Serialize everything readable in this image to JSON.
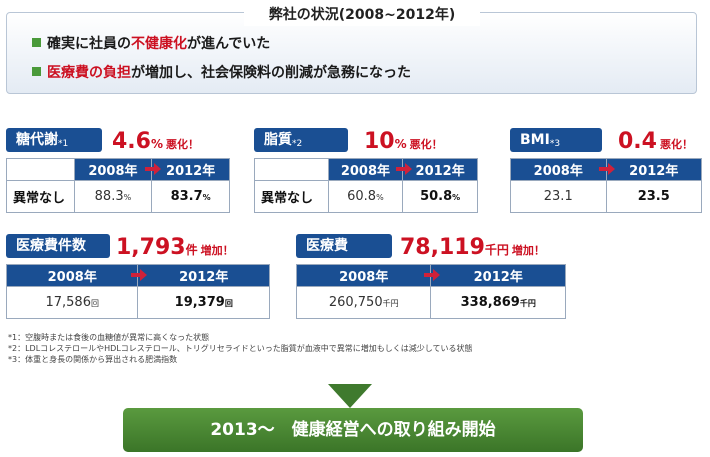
{
  "situation": {
    "title": "弊社の状況(2008~2012年)",
    "line1": {
      "before": "確実に社員の",
      "highlight": "不健康化",
      "after": "が進んでいた"
    },
    "line2": {
      "highlight": "医療費の負担",
      "after": "が増加し、社会保険料の削減が急務になった"
    }
  },
  "metrics": {
    "metabolism": {
      "label": "糖代謝",
      "mark": "*1",
      "change": "4.6",
      "unit": "%",
      "note": "悪化！",
      "year_from": "2008年",
      "year_to": "2012年",
      "row_label": "異常なし",
      "val_from": "88.3",
      "val_from_unit": "%",
      "val_to": "83.7",
      "val_to_unit": "%"
    },
    "lipid": {
      "label": "脂質",
      "mark": "*2",
      "change": "10",
      "unit": "%",
      "note": "悪化！",
      "year_from": "2008年",
      "year_to": "2012年",
      "row_label": "異常なし",
      "val_from": "60.8",
      "val_from_unit": "%",
      "val_to": "50.8",
      "val_to_unit": "%"
    },
    "bmi": {
      "label": "BMI",
      "mark": "*3",
      "change": "0.4",
      "unit": "",
      "note": "悪化！",
      "year_from": "2008年",
      "year_to": "2012年",
      "val_from": "23.1",
      "val_to": "23.5"
    },
    "med_count": {
      "label": "医療費件数",
      "change": "1,793",
      "unit": "件",
      "note": "増加！",
      "year_from": "2008年",
      "year_to": "2012年",
      "val_from": "17,586",
      "val_from_unit": "回",
      "val_to": "19,379",
      "val_to_unit": "回"
    },
    "med_cost": {
      "label": "医療費",
      "change": "78,119",
      "unit": "千円",
      "note": "増加！",
      "year_from": "2008年",
      "year_to": "2012年",
      "val_from": "260,750",
      "val_from_unit": "千円",
      "val_to": "338,869",
      "val_to_unit": "千円"
    }
  },
  "footnotes": [
    "*1：空腹時または食後の血糖値が異常に高くなった状態",
    "*2：LDLコレステロールやHDLコレステロール、トリグリセライドといった脂質が血液中で異常に増加もしくは減少している状態",
    "*3：体重と身長の関係から算出される肥満指数"
  ],
  "banner": {
    "text": "2013～　健康経営への取り組み開始"
  },
  "colors": {
    "navy": "#1a4f93",
    "red": "#cc1122",
    "green": "#4a9a3a"
  }
}
